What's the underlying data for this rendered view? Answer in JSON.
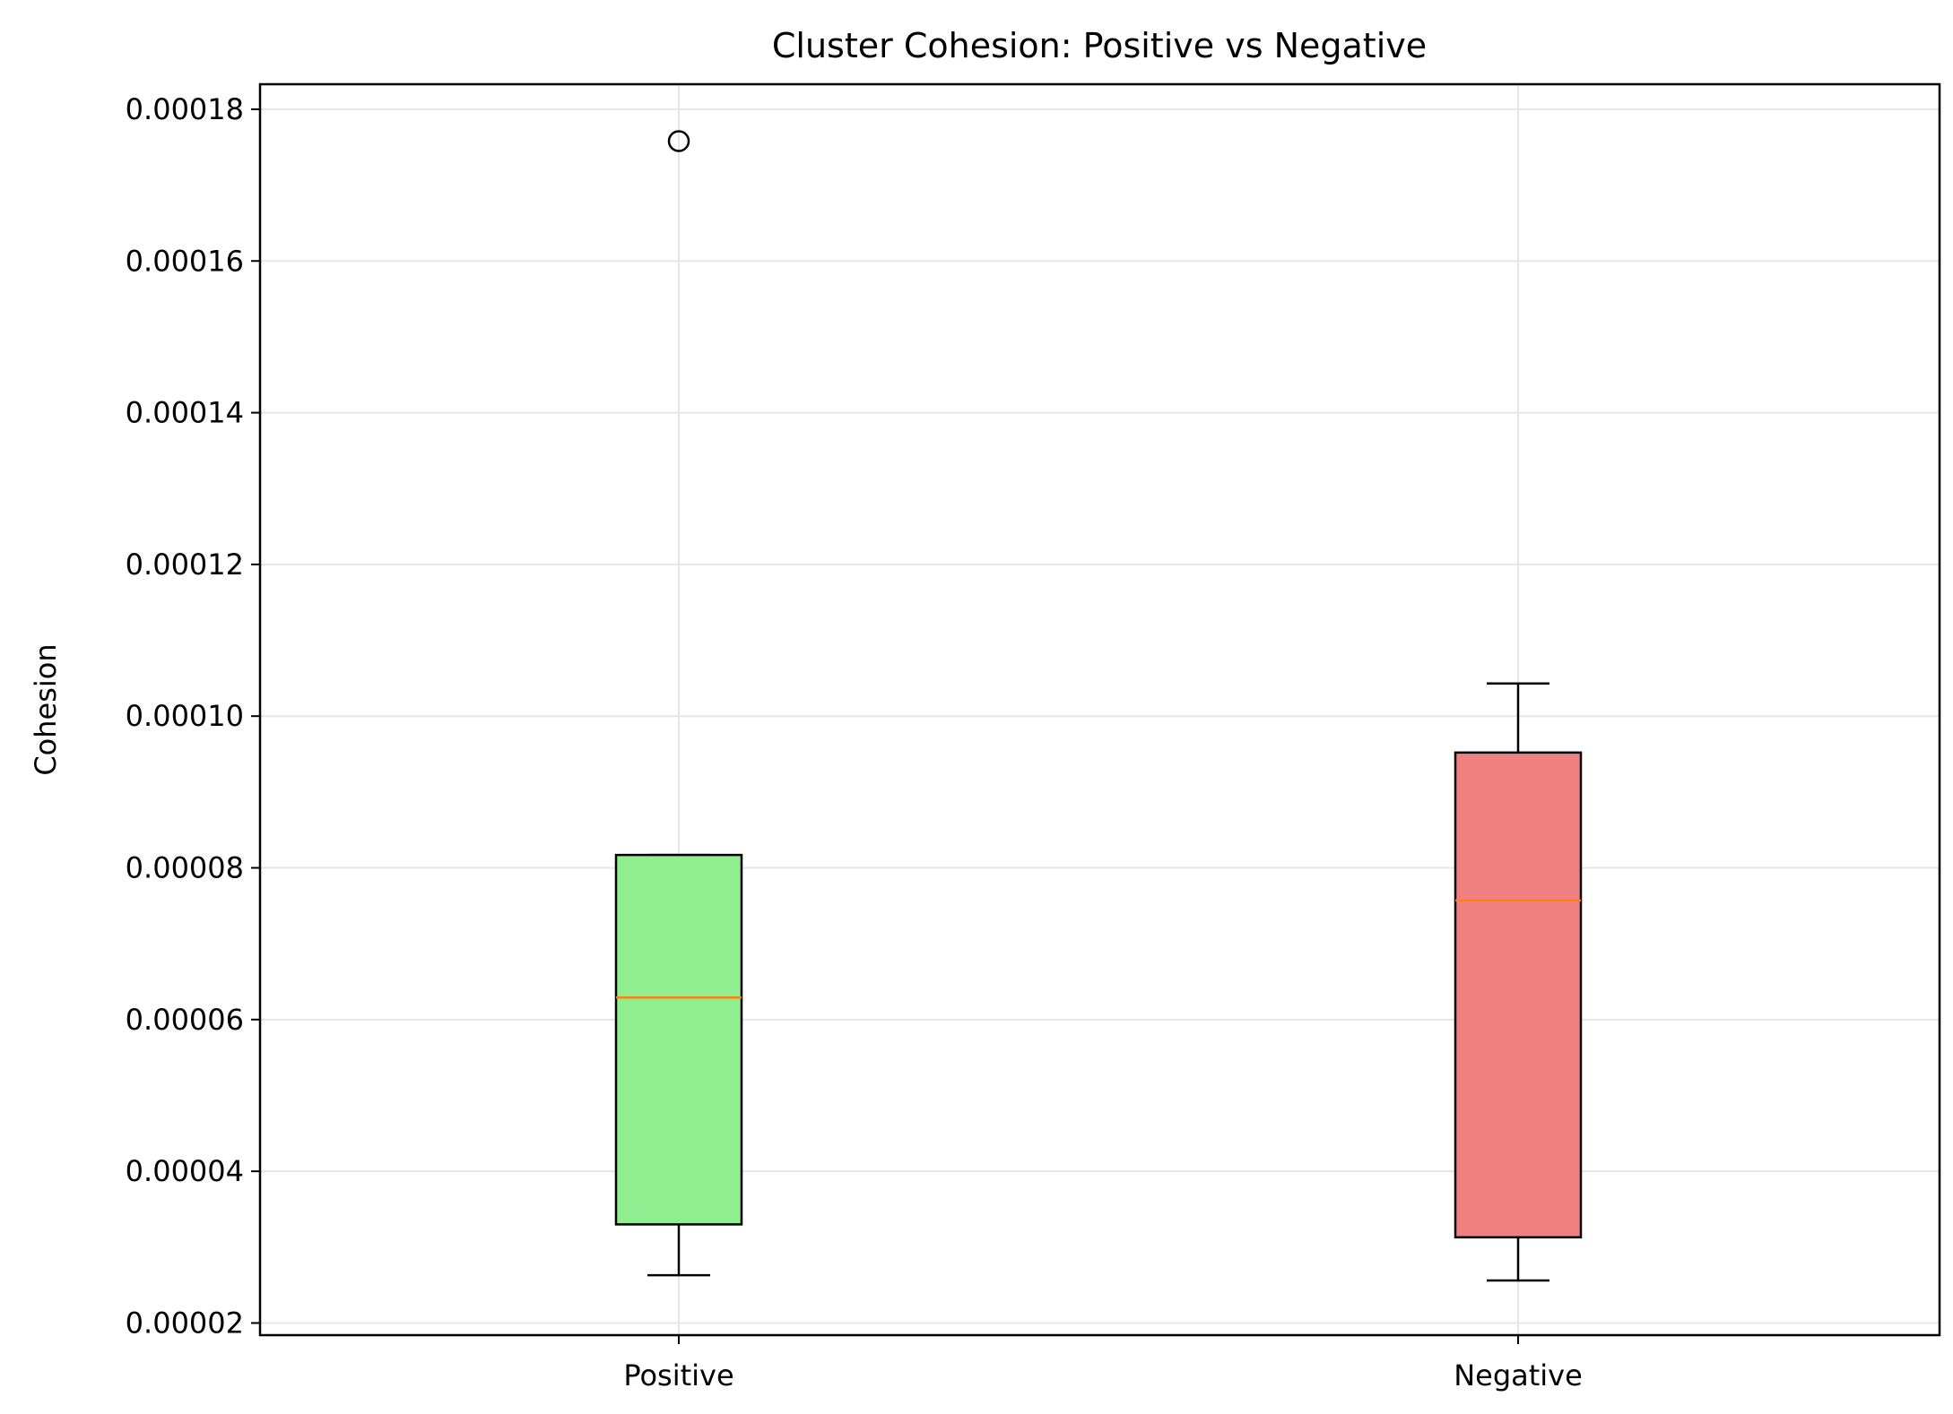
{
  "chart_data": {
    "type": "box",
    "title": "Cluster Cohesion: Positive vs Negative",
    "xlabel": "",
    "ylabel": "Cohesion",
    "ylim": [
      1.84e-05,
      0.0001833
    ],
    "yticks": [
      2e-05,
      4e-05,
      6e-05,
      8e-05,
      0.0001,
      0.00012,
      0.00014,
      0.00016,
      0.00018
    ],
    "ytick_labels": [
      "0.00002",
      "0.00004",
      "0.00006",
      "0.00008",
      "0.00010",
      "0.00012",
      "0.00014",
      "0.00016",
      "0.00018"
    ],
    "grid": true,
    "categories": [
      "Positive",
      "Negative"
    ],
    "boxes": [
      {
        "label": "Positive",
        "whisker_low": 2.63e-05,
        "q1": 3.3e-05,
        "median": 6.29e-05,
        "q3": 8.17e-05,
        "whisker_high": 8.17e-05,
        "outliers": [
          0.0001758
        ],
        "color": "#90ee90"
      },
      {
        "label": "Negative",
        "whisker_low": 2.56e-05,
        "q1": 3.13e-05,
        "median": 7.57e-05,
        "q3": 9.52e-05,
        "whisker_high": 0.0001043,
        "outliers": [],
        "color": "#f08080"
      }
    ],
    "median_color": "#ff7f0e",
    "grid_color": "#e6e6e6"
  }
}
